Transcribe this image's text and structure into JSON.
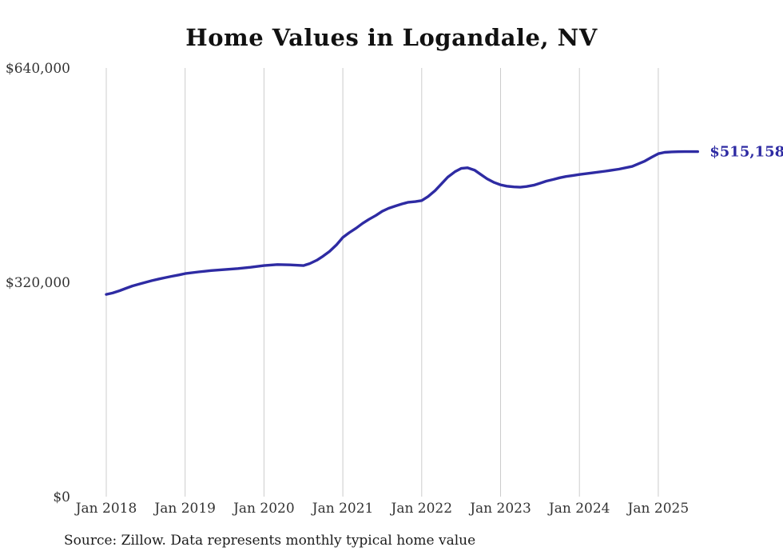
{
  "source_note": "Source: Zillow. Data represents monthly typical home value",
  "colors": {
    "line": "#2e2ba3",
    "grid": "#cccccc",
    "tick_text": "#333333",
    "title_text": "#111111",
    "end_label_text": "#2e2ba3",
    "background": "#ffffff"
  },
  "chart_data": {
    "type": "line",
    "title": "Home Values in Logandale, NV",
    "xlabel": "",
    "ylabel": "",
    "ylim": [
      0,
      640000
    ],
    "grid": "vertical-only",
    "legend": "none",
    "end_label": "$515,158",
    "y_ticks": [
      {
        "value": 0,
        "label": "$0"
      },
      {
        "value": 320000,
        "label": "$320,000"
      },
      {
        "value": 640000,
        "label": "$640,000"
      }
    ],
    "x_ticks": [
      {
        "t": 2018,
        "label": "Jan 2018"
      },
      {
        "t": 2019,
        "label": "Jan 2019"
      },
      {
        "t": 2020,
        "label": "Jan 2020"
      },
      {
        "t": 2021,
        "label": "Jan 2021"
      },
      {
        "t": 2022,
        "label": "Jan 2022"
      },
      {
        "t": 2023,
        "label": "Jan 2023"
      },
      {
        "t": 2024,
        "label": "Jan 2024"
      },
      {
        "t": 2025,
        "label": "Jan 2025"
      }
    ],
    "series": [
      {
        "name": "Monthly typical home value",
        "final_value": 515158,
        "points": [
          [
            2018.0,
            302000
          ],
          [
            2018.08,
            304000
          ],
          [
            2018.17,
            307500
          ],
          [
            2018.25,
            311000
          ],
          [
            2018.33,
            314500
          ],
          [
            2018.42,
            317500
          ],
          [
            2018.5,
            320000
          ],
          [
            2018.58,
            322500
          ],
          [
            2018.67,
            325000
          ],
          [
            2018.75,
            327000
          ],
          [
            2018.83,
            329000
          ],
          [
            2018.92,
            331000
          ],
          [
            2019.0,
            333000
          ],
          [
            2019.17,
            335500
          ],
          [
            2019.33,
            337500
          ],
          [
            2019.5,
            339000
          ],
          [
            2019.67,
            340500
          ],
          [
            2019.83,
            342500
          ],
          [
            2020.0,
            345000
          ],
          [
            2020.17,
            346500
          ],
          [
            2020.33,
            346000
          ],
          [
            2020.5,
            345000
          ],
          [
            2020.58,
            348000
          ],
          [
            2020.67,
            353000
          ],
          [
            2020.75,
            359000
          ],
          [
            2020.83,
            366000
          ],
          [
            2020.92,
            376000
          ],
          [
            2021.0,
            387000
          ],
          [
            2021.08,
            394000
          ],
          [
            2021.17,
            401000
          ],
          [
            2021.25,
            408000
          ],
          [
            2021.33,
            414000
          ],
          [
            2021.42,
            420000
          ],
          [
            2021.5,
            426000
          ],
          [
            2021.58,
            430500
          ],
          [
            2021.67,
            434000
          ],
          [
            2021.75,
            437000
          ],
          [
            2021.83,
            439500
          ],
          [
            2021.92,
            440500
          ],
          [
            2022.0,
            442000
          ],
          [
            2022.08,
            448000
          ],
          [
            2022.17,
            457000
          ],
          [
            2022.25,
            467000
          ],
          [
            2022.33,
            477000
          ],
          [
            2022.42,
            485000
          ],
          [
            2022.5,
            490000
          ],
          [
            2022.58,
            491000
          ],
          [
            2022.67,
            487500
          ],
          [
            2022.75,
            481000
          ],
          [
            2022.83,
            474500
          ],
          [
            2022.92,
            469000
          ],
          [
            2023.0,
            465500
          ],
          [
            2023.08,
            463500
          ],
          [
            2023.17,
            462500
          ],
          [
            2023.25,
            462000
          ],
          [
            2023.33,
            463000
          ],
          [
            2023.42,
            465000
          ],
          [
            2023.5,
            468000
          ],
          [
            2023.58,
            471000
          ],
          [
            2023.67,
            473500
          ],
          [
            2023.75,
            476000
          ],
          [
            2023.83,
            478000
          ],
          [
            2023.92,
            479500
          ],
          [
            2024.0,
            481000
          ],
          [
            2024.17,
            483500
          ],
          [
            2024.33,
            486000
          ],
          [
            2024.5,
            489000
          ],
          [
            2024.67,
            493000
          ],
          [
            2024.83,
            501000
          ],
          [
            2024.92,
            507000
          ],
          [
            2025.0,
            512000
          ],
          [
            2025.08,
            514000
          ],
          [
            2025.17,
            514800
          ],
          [
            2025.25,
            515000
          ],
          [
            2025.33,
            515100
          ],
          [
            2025.42,
            515100
          ],
          [
            2025.5,
            515158
          ]
        ]
      }
    ]
  }
}
